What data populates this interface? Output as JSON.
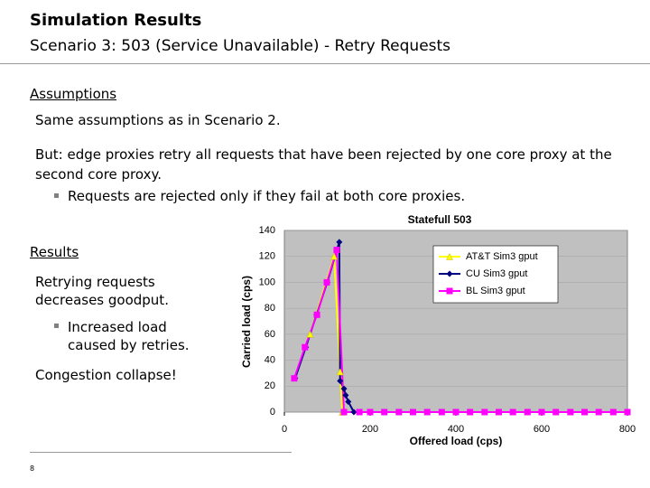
{
  "header": {
    "title": "Simulation Results",
    "subtitle": "Scenario 3: 503 (Service Unavailable) - Retry Requests"
  },
  "body": {
    "assumptions_heading": "Assumptions",
    "assumption_1": "Same assumptions as in Scenario 2.",
    "assumption_2": "But: edge proxies retry all requests that have been rejected by one core proxy at the second core proxy.",
    "assumption_2_bullet": "Requests are rejected only if they fail at both core proxies.",
    "results_heading": "Results",
    "result_1": "Retrying requests decreases goodput.",
    "result_1_bullet": "Increased load caused by retries.",
    "result_2": "Congestion collapse!"
  },
  "footer": {
    "page_number": "8"
  },
  "chart_data": {
    "type": "line",
    "title": "Statefull 503",
    "x_label": "Offered load (cps)",
    "y_label": "Carried load (cps)",
    "xlim": [
      0,
      800
    ],
    "xticks": [
      0,
      200,
      400,
      600,
      800
    ],
    "ylim": [
      0,
      140
    ],
    "yticks": [
      0,
      20,
      40,
      60,
      80,
      100,
      120,
      140
    ],
    "grid": true,
    "legend": "upper right",
    "series": [
      {
        "name": "AT&T Sim3 gput",
        "color": "#ffff00",
        "marker": "triangle",
        "x": [
          60,
          116,
          130,
          135
        ],
        "values": [
          60,
          120,
          31,
          0
        ]
      },
      {
        "name": "CU Sim3 gput",
        "color": "#000080",
        "marker": "diamond",
        "x": [
          25,
          50,
          75,
          100,
          128,
          130,
          139,
          143,
          149,
          162
        ],
        "values": [
          26,
          50,
          75,
          100,
          131,
          24,
          18,
          13,
          8,
          0
        ]
      },
      {
        "name": "BL Sim3 gput",
        "color": "#ff00ff",
        "marker": "square",
        "x": [
          23,
          48,
          76,
          99,
          122,
          139,
          175,
          200,
          233,
          267,
          300,
          333,
          367,
          400,
          433,
          467,
          500,
          533,
          567,
          600,
          633,
          667,
          700,
          733,
          767,
          800
        ],
        "values": [
          26,
          50,
          75,
          100,
          125,
          0,
          0,
          0,
          0,
          0,
          0,
          0,
          0,
          0,
          0,
          0,
          0,
          0,
          0,
          0,
          0,
          0,
          0,
          0,
          0,
          0
        ]
      }
    ]
  }
}
